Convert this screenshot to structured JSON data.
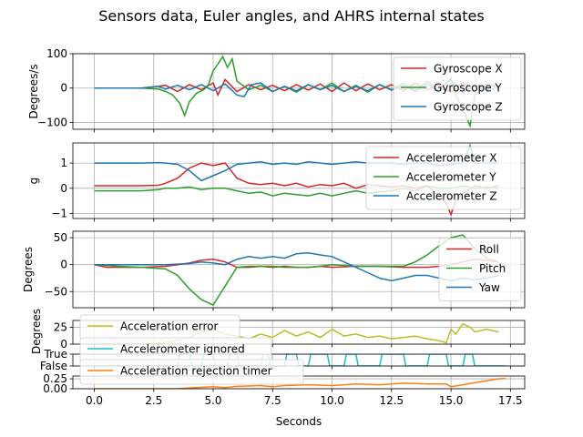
{
  "title": "Sensors data, Euler angles, and AHRS internal states",
  "colors": {
    "red": "#d62728",
    "green": "#2ca02c",
    "blue": "#1f77b4",
    "olive": "#bcbd22",
    "cyan": "#17becf",
    "orange": "#ff7f0e"
  },
  "chart_data": [
    {
      "type": "line",
      "panel": "gyroscope",
      "ylabel": "Degrees/s",
      "ylim": [
        -120,
        100
      ],
      "yticks": [
        -100,
        0,
        100
      ],
      "ytick_labels": [
        "−100",
        "0",
        "100"
      ],
      "legend": "top-right",
      "grid": true,
      "series": [
        {
          "name": "Gyroscope X",
          "color": "red",
          "x": [
            0,
            1,
            2,
            2.7,
            3,
            3.5,
            4,
            4.5,
            5,
            5.2,
            5.5,
            6,
            6.5,
            7,
            7.5,
            8,
            8.5,
            9,
            9.5,
            10,
            10.5,
            11,
            11.5,
            12,
            12.5,
            13,
            13.5,
            14,
            14.5,
            15,
            15.5,
            16,
            16.5,
            17
          ],
          "y": [
            0,
            0,
            0,
            5,
            8,
            -10,
            10,
            -5,
            15,
            -20,
            25,
            -10,
            10,
            -5,
            8,
            -8,
            10,
            -6,
            12,
            -10,
            15,
            -8,
            12,
            -5,
            10,
            -8,
            15,
            -5,
            10,
            -12,
            15,
            -8,
            10,
            5
          ]
        },
        {
          "name": "Gyroscope Y",
          "color": "green",
          "x": [
            0,
            1,
            2,
            2.7,
            3,
            3.3,
            3.6,
            3.8,
            4,
            4.3,
            4.6,
            4.8,
            5,
            5.2,
            5.4,
            5.6,
            5.8,
            6,
            6.5,
            7,
            7.5,
            8,
            8.5,
            9,
            9.5,
            10,
            10.5,
            11,
            11.5,
            12,
            12.5,
            13,
            13.5,
            14,
            14.5,
            15,
            15.2,
            15.5,
            15.8,
            16,
            16.5,
            17
          ],
          "y": [
            0,
            0,
            0,
            -3,
            -10,
            -20,
            -45,
            -80,
            -40,
            -15,
            -5,
            10,
            50,
            70,
            92,
            60,
            85,
            20,
            -5,
            8,
            -10,
            5,
            -12,
            10,
            -5,
            15,
            -10,
            8,
            -12,
            10,
            -5,
            15,
            -8,
            20,
            -10,
            30,
            -20,
            -60,
            -110,
            -20,
            10,
            5
          ]
        },
        {
          "name": "Gyroscope Z",
          "color": "blue",
          "x": [
            0,
            1,
            2,
            2.7,
            3,
            3.5,
            4,
            4.5,
            5,
            5.5,
            6,
            6.3,
            6.6,
            7,
            7.5,
            8,
            8.5,
            9,
            9.5,
            10,
            10.5,
            11,
            11.5,
            12,
            12.5,
            13,
            13.5,
            14,
            14.5,
            15,
            15.5,
            16,
            16.5,
            17
          ],
          "y": [
            0,
            0,
            0,
            5,
            -3,
            8,
            -5,
            10,
            -8,
            12,
            -20,
            -25,
            10,
            15,
            -10,
            5,
            -8,
            10,
            -5,
            8,
            -10,
            5,
            -8,
            10,
            -6,
            8,
            -10,
            12,
            -8,
            25,
            -15,
            10,
            -5,
            0
          ]
        }
      ]
    },
    {
      "type": "line",
      "panel": "accelerometer",
      "ylabel": "g",
      "ylim": [
        -1.2,
        1.8
      ],
      "yticks": [
        -1,
        0,
        1
      ],
      "ytick_labels": [
        "−1",
        "0",
        "1"
      ],
      "legend": "top-right",
      "grid": true,
      "series": [
        {
          "name": "Accelerometer X",
          "color": "red",
          "x": [
            0,
            1,
            2,
            2.7,
            3,
            3.5,
            4,
            4.5,
            5,
            5.5,
            6,
            6.5,
            7,
            7.5,
            8,
            8.5,
            9,
            9.5,
            10,
            10.5,
            11,
            11.5,
            12,
            12.5,
            13,
            13.5,
            14,
            14.5,
            14.8,
            15,
            15.2,
            15.5,
            16,
            16.5,
            17
          ],
          "y": [
            0.1,
            0.1,
            0.1,
            0.12,
            0.2,
            0.4,
            0.8,
            1.0,
            0.9,
            1.0,
            0.4,
            0.2,
            0.15,
            0.2,
            0.1,
            0.2,
            0.05,
            0.15,
            0.1,
            0.2,
            0.0,
            0.15,
            0.1,
            0.05,
            0.1,
            0.0,
            0.1,
            -0.3,
            -0.6,
            -1.05,
            -0.5,
            -0.2,
            0.1,
            0.0,
            0.1
          ]
        },
        {
          "name": "Accelerometer Y",
          "color": "green",
          "x": [
            0,
            1,
            2,
            2.7,
            3,
            3.5,
            4,
            4.5,
            5,
            5.5,
            6,
            6.5,
            7,
            7.5,
            8,
            8.5,
            9,
            9.5,
            10,
            10.5,
            11,
            11.5,
            12,
            12.5,
            13,
            13.5,
            14,
            14.5,
            15,
            15.5,
            16,
            16.5,
            17
          ],
          "y": [
            -0.1,
            -0.1,
            -0.1,
            -0.05,
            0,
            0.0,
            0.05,
            -0.05,
            0.0,
            0.0,
            -0.1,
            -0.2,
            -0.15,
            -0.3,
            -0.2,
            -0.25,
            -0.3,
            -0.2,
            -0.3,
            -0.2,
            -0.1,
            -0.2,
            -0.15,
            -0.1,
            0.0,
            -0.1,
            0.1,
            0.0,
            0.0,
            0.1,
            0.0,
            0.05,
            0.0
          ]
        },
        {
          "name": "Accelerometer Z",
          "color": "blue",
          "x": [
            0,
            1,
            2,
            2.7,
            3,
            3.5,
            4,
            4.5,
            5,
            5.5,
            6,
            6.5,
            7,
            7.5,
            8,
            8.5,
            9,
            9.5,
            10,
            10.5,
            11,
            11.5,
            12,
            12.5,
            13,
            13.5,
            14,
            14.5,
            15,
            15.5,
            15.8,
            16,
            16.5,
            17
          ],
          "y": [
            1.0,
            1.0,
            1.0,
            1.02,
            1.0,
            0.95,
            0.7,
            0.3,
            0.5,
            0.7,
            0.95,
            1.0,
            1.05,
            0.95,
            1.0,
            0.95,
            1.05,
            1.0,
            0.95,
            1.0,
            1.05,
            1.0,
            1.0,
            1.0,
            0.95,
            1.0,
            1.0,
            0.9,
            0.95,
            1.0,
            1.7,
            1.0,
            1.0,
            1.0
          ]
        }
      ]
    },
    {
      "type": "line",
      "panel": "euler",
      "ylabel": "Degrees",
      "ylim": [
        -80,
        62
      ],
      "yticks": [
        -50,
        0,
        50
      ],
      "ytick_labels": [
        "−50",
        "0",
        "50"
      ],
      "legend": "right",
      "grid": true,
      "series": [
        {
          "name": "Roll",
          "color": "red",
          "x": [
            0,
            0.5,
            1,
            2,
            3,
            3.5,
            4,
            4.5,
            5,
            5.5,
            6,
            6.5,
            7,
            7.5,
            8,
            8.5,
            9,
            9.5,
            10,
            11,
            12,
            13,
            14,
            14.5,
            15,
            15.5,
            16,
            16.5,
            17
          ],
          "y": [
            0,
            -5,
            -5,
            -5,
            -3,
            0,
            3,
            8,
            10,
            5,
            -5,
            -5,
            -3,
            -5,
            -3,
            -5,
            -5,
            -3,
            -5,
            -3,
            -3,
            -5,
            -5,
            -3,
            0,
            5,
            10,
            8,
            5
          ]
        },
        {
          "name": "Pitch",
          "color": "green",
          "x": [
            0,
            1,
            2,
            3,
            3.5,
            4,
            4.5,
            5,
            5.5,
            6,
            6.5,
            7,
            7.5,
            8,
            8.5,
            9,
            9.5,
            10,
            11,
            12,
            13,
            13.5,
            14,
            14.5,
            15,
            15.5,
            16,
            16.5,
            17
          ],
          "y": [
            0,
            -3,
            -5,
            -8,
            -20,
            -45,
            -65,
            -75,
            -40,
            -5,
            -3,
            -3,
            -3,
            -5,
            -5,
            -5,
            -3,
            0,
            -3,
            -3,
            -3,
            5,
            18,
            35,
            50,
            55,
            30,
            12,
            5
          ]
        },
        {
          "name": "Yaw",
          "color": "blue",
          "x": [
            0,
            1,
            2,
            3,
            4,
            4.5,
            5,
            5.5,
            6,
            6.5,
            7,
            7.5,
            8,
            8.5,
            9,
            9.5,
            10,
            10.5,
            11,
            11.5,
            12,
            12.5,
            13,
            13.5,
            14,
            14.5,
            15,
            15.5,
            16,
            16.5,
            17
          ],
          "y": [
            0,
            0,
            0,
            0,
            2,
            5,
            3,
            0,
            10,
            15,
            12,
            15,
            12,
            20,
            22,
            18,
            15,
            5,
            -5,
            -15,
            -25,
            -30,
            -25,
            -20,
            -20,
            -25,
            -30,
            -25,
            -28,
            -25,
            -20
          ]
        }
      ]
    },
    {
      "type": "line",
      "panel": "acceleration_error",
      "ylabel": "Degrees",
      "ylim": [
        0,
        35
      ],
      "yticks": [
        0,
        25
      ],
      "ytick_labels": [
        "0",
        "25"
      ],
      "legend": "top-left",
      "grid": true,
      "series": [
        {
          "name": "Acceleration error",
          "color": "olive",
          "x": [
            0,
            1,
            2,
            2.7,
            3,
            3.5,
            4,
            4.5,
            5,
            5.5,
            6,
            6.5,
            7,
            7.5,
            8,
            8.5,
            9,
            9.5,
            10,
            10.5,
            11,
            11.5,
            12,
            12.5,
            13,
            13.5,
            14,
            14.5,
            14.8,
            15,
            15.2,
            15.5,
            15.8,
            16,
            16.5,
            17
          ],
          "y": [
            0,
            0,
            0,
            1,
            3,
            5,
            10,
            18,
            22,
            15,
            12,
            8,
            15,
            10,
            20,
            12,
            18,
            10,
            22,
            12,
            15,
            10,
            12,
            8,
            10,
            12,
            8,
            5,
            2,
            22,
            15,
            30,
            25,
            18,
            22,
            18
          ]
        }
      ]
    },
    {
      "type": "line",
      "panel": "accelerometer_ignored",
      "ylim": [
        0,
        1
      ],
      "yticks": [
        0,
        1
      ],
      "ytick_labels": [
        "False",
        "True"
      ],
      "legend": "top-left",
      "grid": true,
      "series": [
        {
          "name": "Accelerometer ignored",
          "color": "cyan",
          "x": [
            0,
            3.5,
            3.6,
            4,
            4.1,
            4.5,
            4.6,
            5,
            5.1,
            5.6,
            5.7,
            6,
            6.1,
            7,
            7.1,
            7.3,
            7.4,
            8,
            8.1,
            8.5,
            8.6,
            9,
            9.1,
            9.8,
            9.9,
            10.5,
            10.6,
            11,
            11.1,
            12,
            12.1,
            13,
            13.1,
            14,
            14.1,
            14.8,
            14.9,
            15.5,
            15.6,
            15.9,
            16.0,
            17.3
          ],
          "y": [
            0,
            0,
            1,
            1,
            0,
            0,
            1,
            1,
            0,
            0,
            1,
            1,
            0,
            0,
            1,
            1,
            0,
            0,
            1,
            1,
            0,
            0,
            1,
            1,
            0,
            0,
            1,
            1,
            0,
            0,
            1,
            1,
            0,
            0,
            1,
            1,
            0,
            0,
            1,
            1,
            0,
            0
          ]
        }
      ]
    },
    {
      "type": "line",
      "panel": "acceleration_rejection_timer",
      "ylim": [
        0,
        0.32
      ],
      "yticks": [
        0,
        0.25
      ],
      "ytick_labels": [
        "0.00",
        "0.25"
      ],
      "legend": "top-left",
      "grid": true,
      "xlabel": "Seconds",
      "xticks": [
        0,
        2.5,
        5,
        7.5,
        10,
        12.5,
        15,
        17.5
      ],
      "xtick_labels": [
        "0.0",
        "2.5",
        "5.0",
        "7.5",
        "10.0",
        "12.5",
        "15.0",
        "17.5"
      ],
      "series": [
        {
          "name": "Acceleration rejection timer",
          "color": "orange",
          "x": [
            0,
            3.5,
            4,
            5,
            5.5,
            6,
            7,
            7.5,
            8,
            9,
            10,
            11,
            12,
            13,
            14,
            14.8,
            15,
            16,
            17,
            17.3
          ],
          "y": [
            0,
            0,
            0.02,
            0.05,
            0.03,
            0.06,
            0.08,
            0.05,
            0.08,
            0.1,
            0.08,
            0.12,
            0.1,
            0.14,
            0.12,
            0.12,
            0.05,
            0.15,
            0.25,
            0.26
          ]
        }
      ]
    }
  ]
}
